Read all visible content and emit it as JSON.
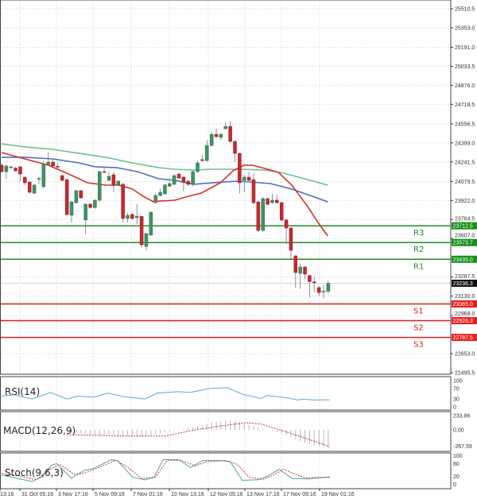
{
  "chart_data": {
    "type": "candlestick",
    "grid": true,
    "colors": {
      "bull": "#3f9466",
      "bear": "#c62a2f",
      "ma_fast": "#d9302c",
      "ma_mid": "#4a6fc6",
      "ma_slow": "#6cbf8a",
      "resistance": "#2a8a2a",
      "support": "#d42020",
      "rsi": "#5aa9d6",
      "stoch_main": "#4aa6a8",
      "signal": "#c0392b",
      "histogram": "#b8b8b8"
    },
    "price_axis": {
      "range": [
        22495.5,
        25510.5
      ],
      "ticks": [
        "25510.5",
        "25353.0",
        "25191.0",
        "25033.5",
        "24876.0",
        "24718.5",
        "24556.5",
        "24399.0",
        "24241.5",
        "24079.5",
        "23922.0",
        "23764.5",
        "23607.0",
        "23287.5",
        "23130.0",
        "22968.0",
        "22653.0",
        "22495.5"
      ]
    },
    "current_price": "23236.3",
    "levels": [
      {
        "label": "R3",
        "value": "23712.5",
        "kind": "resistance"
      },
      {
        "label": "R2",
        "value": "23573.7",
        "kind": "resistance"
      },
      {
        "label": "R1",
        "value": "23435.0",
        "kind": "resistance"
      },
      {
        "label": "S1",
        "value": "23065.0",
        "kind": "support"
      },
      {
        "label": "S2",
        "value": "22926.3",
        "kind": "support"
      },
      {
        "label": "S3",
        "value": "22787.5",
        "kind": "support"
      }
    ],
    "x_tick_labels": [
      "13:16",
      "31 Oct 05:16",
      "3 Nov 17:16",
      "5 Nov 09:16",
      "7 Nov 01:16",
      "10 Nov 13:16",
      "12 Nov 05:16",
      "13 Nov 17:16",
      "17 Nov 09:16",
      "19 Nov 01:16"
    ],
    "candles_ohlc": [
      [
        24214,
        24230,
        24150,
        24161
      ],
      [
        24161,
        24220,
        24100,
        24207
      ],
      [
        24200,
        24215,
        24185,
        24200
      ],
      [
        24190,
        24200,
        24160,
        24168
      ],
      [
        24201,
        24205,
        24080,
        24141
      ],
      [
        24115,
        24120,
        24050,
        24069
      ],
      [
        24075,
        24080,
        23980,
        23990
      ],
      [
        23983,
        24060,
        23975,
        24050
      ],
      [
        24100,
        24120,
        24060,
        24105
      ],
      [
        24036,
        24250,
        24020,
        24220
      ],
      [
        24220,
        24320,
        24210,
        24240
      ],
      [
        24240,
        24260,
        24200,
        24207
      ],
      [
        24205,
        24230,
        24185,
        24200
      ],
      [
        24128,
        24140,
        24080,
        24089
      ],
      [
        24095,
        24100,
        23790,
        23806
      ],
      [
        23800,
        23920,
        23740,
        23910
      ],
      [
        23904,
        24010,
        23895,
        24003
      ],
      [
        24003,
        24010,
        23935,
        23944
      ],
      [
        23760,
        23900,
        23641,
        23891
      ],
      [
        23891,
        23900,
        23855,
        23864
      ],
      [
        23864,
        23935,
        23855,
        23924
      ],
      [
        23924,
        24170,
        23915,
        24161
      ],
      [
        24161,
        24195,
        24150,
        24155
      ],
      [
        24089,
        24160,
        24080,
        24122
      ],
      [
        24135,
        24160,
        23990,
        24050
      ],
      [
        24050,
        24090,
        24040,
        24082
      ],
      [
        24056,
        24070,
        23740,
        23773
      ],
      [
        23773,
        23820,
        23740,
        23799
      ],
      [
        23806,
        23815,
        23765,
        23773
      ],
      [
        23780,
        23890,
        23727,
        23790
      ],
      [
        23790,
        23795,
        23530,
        23555
      ],
      [
        23542,
        23655,
        23509,
        23648
      ],
      [
        23635,
        23830,
        23630,
        23825
      ],
      [
        23917,
        23980,
        23905,
        23963
      ],
      [
        23963,
        24020,
        23955,
        23990
      ],
      [
        23977,
        24060,
        23970,
        24050
      ],
      [
        24040,
        24080,
        24035,
        24062
      ],
      [
        24056,
        24140,
        24050,
        24128
      ],
      [
        24141,
        24150,
        24100,
        24108
      ],
      [
        24115,
        24125,
        24000,
        24075
      ],
      [
        24082,
        24090,
        24040,
        24056
      ],
      [
        24056,
        24170,
        24040,
        24161
      ],
      [
        24161,
        24250,
        24150,
        24233
      ],
      [
        24260,
        24300,
        24245,
        24253
      ],
      [
        24253,
        24420,
        24245,
        24378
      ],
      [
        24378,
        24490,
        24370,
        24470
      ],
      [
        24470,
        24520,
        24440,
        24451
      ],
      [
        24445,
        24480,
        24420,
        24470
      ],
      [
        24517,
        24570,
        24510,
        24536
      ],
      [
        24536,
        24580,
        24405,
        24411
      ],
      [
        24411,
        24420,
        24240,
        24312
      ],
      [
        24312,
        24320,
        23980,
        24069
      ],
      [
        24089,
        24130,
        23990,
        24115
      ],
      [
        24115,
        24160,
        24080,
        24089
      ],
      [
        24095,
        24150,
        23890,
        23904
      ],
      [
        23910,
        23920,
        23660,
        23674
      ],
      [
        23674,
        23950,
        23660,
        23937
      ],
      [
        23937,
        23945,
        23880,
        23891
      ],
      [
        23904,
        23980,
        23895,
        23924
      ],
      [
        23924,
        23970,
        23895,
        23904
      ],
      [
        23904,
        23915,
        23750,
        23760
      ],
      [
        23760,
        23770,
        23560,
        23694
      ],
      [
        23694,
        23700,
        23440,
        23509
      ],
      [
        23463,
        23470,
        23200,
        23325
      ],
      [
        23319,
        23400,
        23190,
        23371
      ],
      [
        23371,
        23380,
        23270,
        23312
      ],
      [
        23300,
        23310,
        23120,
        23250
      ],
      [
        23247,
        23290,
        23160,
        23240
      ],
      [
        23200,
        23215,
        23130,
        23160
      ],
      [
        23165,
        23225,
        23112,
        23170
      ],
      [
        23170,
        23260,
        23150,
        23236
      ]
    ],
    "moving_averages": [
      {
        "color_key": "ma_slow",
        "points": [
          [
            0,
            24391
          ],
          [
            5.3,
            24365
          ],
          [
            11,
            24345
          ],
          [
            16.7,
            24312
          ],
          [
            22.3,
            24280
          ],
          [
            28.1,
            24233
          ],
          [
            33.7,
            24194
          ],
          [
            37.1,
            24181
          ],
          [
            41.1,
            24174
          ],
          [
            45.1,
            24181
          ],
          [
            50.8,
            24181
          ],
          [
            56.4,
            24174
          ],
          [
            60.5,
            24148
          ],
          [
            64.9,
            24102
          ],
          [
            69.9,
            24049
          ]
        ]
      },
      {
        "color_key": "ma_mid",
        "points": [
          [
            0,
            24280
          ],
          [
            5,
            24280
          ],
          [
            11,
            24266
          ],
          [
            16.7,
            24233
          ],
          [
            20.1,
            24201
          ],
          [
            24.7,
            24194
          ],
          [
            29.1,
            24161
          ],
          [
            33.7,
            24102
          ],
          [
            37.1,
            24089
          ],
          [
            41.1,
            24056
          ],
          [
            47.9,
            24076
          ],
          [
            50.8,
            24082
          ],
          [
            57.6,
            24062
          ],
          [
            62.2,
            24016
          ],
          [
            66.6,
            23957
          ],
          [
            69.9,
            23911
          ]
        ]
      },
      {
        "color_key": "ma_fast",
        "points": [
          [
            0,
            24319
          ],
          [
            5,
            24266
          ],
          [
            10,
            24214
          ],
          [
            14,
            24148
          ],
          [
            18.4,
            24069
          ],
          [
            22.3,
            24049
          ],
          [
            25.2,
            24049
          ],
          [
            28.1,
            24016
          ],
          [
            30.3,
            23957
          ],
          [
            32.9,
            23904
          ],
          [
            33.7,
            23917
          ],
          [
            37.1,
            23924
          ],
          [
            39.4,
            23950
          ],
          [
            42.8,
            23983
          ],
          [
            46.9,
            24069
          ],
          [
            49.6,
            24168
          ],
          [
            51.9,
            24214
          ],
          [
            53.7,
            24214
          ],
          [
            56.4,
            24187
          ],
          [
            59.3,
            24155
          ],
          [
            62.2,
            24049
          ],
          [
            65.6,
            23871
          ],
          [
            67.8,
            23740
          ],
          [
            69.9,
            23628
          ]
        ]
      }
    ],
    "indicators": {
      "rsi": {
        "label": "RSI(14)",
        "ticks": [
          "100",
          "70",
          "30",
          "0"
        ],
        "points": [
          [
            0,
            41
          ],
          [
            2.6,
            46
          ],
          [
            6.5,
            30
          ],
          [
            10.5,
            55
          ],
          [
            14,
            30
          ],
          [
            16.3,
            41
          ],
          [
            19.6,
            37
          ],
          [
            22.9,
            52
          ],
          [
            26.1,
            39
          ],
          [
            30.7,
            30
          ],
          [
            33.3,
            52
          ],
          [
            37.9,
            58
          ],
          [
            40.5,
            55
          ],
          [
            44.4,
            70
          ],
          [
            48.4,
            73
          ],
          [
            51.6,
            48
          ],
          [
            55.6,
            32
          ],
          [
            56.9,
            43
          ],
          [
            61.4,
            34
          ],
          [
            63.4,
            26
          ],
          [
            64.7,
            30
          ],
          [
            66.7,
            26
          ],
          [
            70.3,
            27
          ]
        ]
      },
      "macd": {
        "label": "MACD(12,26,9)",
        "ticks": [
          "233.86",
          "0.00",
          "-267.59"
        ],
        "histogram_start_index": 15,
        "histogram": [
          -40,
          -50,
          -60,
          -70,
          -75,
          -80,
          -85,
          -80,
          -75,
          -80,
          -90,
          -95,
          -105,
          -110,
          -115,
          -110,
          -100,
          -90,
          -70,
          -55,
          -40,
          -25,
          -10,
          5,
          20,
          35,
          45,
          60,
          80,
          100,
          120,
          135,
          145,
          150,
          155,
          150,
          130,
          100,
          80,
          60,
          40,
          15,
          0,
          -20,
          -40,
          -60,
          -90,
          -120,
          -150,
          -180,
          -210,
          -230,
          -250,
          -265,
          -280,
          -300
        ],
        "signal": [
          [
            14,
            -78
          ],
          [
            26,
            -100
          ],
          [
            35,
            -100
          ],
          [
            40.5,
            -13
          ],
          [
            45.8,
            52
          ],
          [
            52.3,
            117
          ],
          [
            55.6,
            95
          ],
          [
            62,
            -56
          ],
          [
            70.3,
            -273
          ]
        ]
      },
      "stoch": {
        "label": "Stoch(9,6,3)",
        "ticks": [
          "100",
          "80",
          "20",
          "0"
        ],
        "main": [
          [
            0,
            32
          ],
          [
            3.3,
            20
          ],
          [
            6.5,
            9
          ],
          [
            8.5,
            24
          ],
          [
            10.8,
            69
          ],
          [
            11.8,
            73
          ],
          [
            15,
            20
          ],
          [
            17.6,
            48
          ],
          [
            19.6,
            55
          ],
          [
            23.5,
            87
          ],
          [
            24.8,
            84
          ],
          [
            28.1,
            24
          ],
          [
            30.7,
            15
          ],
          [
            32.7,
            24
          ],
          [
            34.6,
            87
          ],
          [
            37.9,
            87
          ],
          [
            40.5,
            59
          ],
          [
            43.1,
            84
          ],
          [
            47.1,
            84
          ],
          [
            49,
            80
          ],
          [
            51.6,
            13
          ],
          [
            54.9,
            15
          ],
          [
            56.9,
            27
          ],
          [
            59.5,
            53
          ],
          [
            62.2,
            20
          ],
          [
            65.4,
            18
          ],
          [
            70.3,
            25
          ]
        ],
        "signal": [
          [
            0,
            38
          ],
          [
            4,
            28
          ],
          [
            7.5,
            15
          ],
          [
            10,
            50
          ],
          [
            12.5,
            70
          ],
          [
            15.5,
            35
          ],
          [
            18,
            40
          ],
          [
            21,
            60
          ],
          [
            24.5,
            85
          ],
          [
            27,
            60
          ],
          [
            30,
            20
          ],
          [
            33,
            25
          ],
          [
            35.5,
            85
          ],
          [
            38.5,
            85
          ],
          [
            41.5,
            65
          ],
          [
            44,
            80
          ],
          [
            48,
            84
          ],
          [
            50.5,
            70
          ],
          [
            53,
            25
          ],
          [
            56,
            16
          ],
          [
            58,
            30
          ],
          [
            60.5,
            53
          ],
          [
            63,
            35
          ],
          [
            65,
            22
          ],
          [
            70.3,
            24
          ]
        ]
      }
    }
  }
}
